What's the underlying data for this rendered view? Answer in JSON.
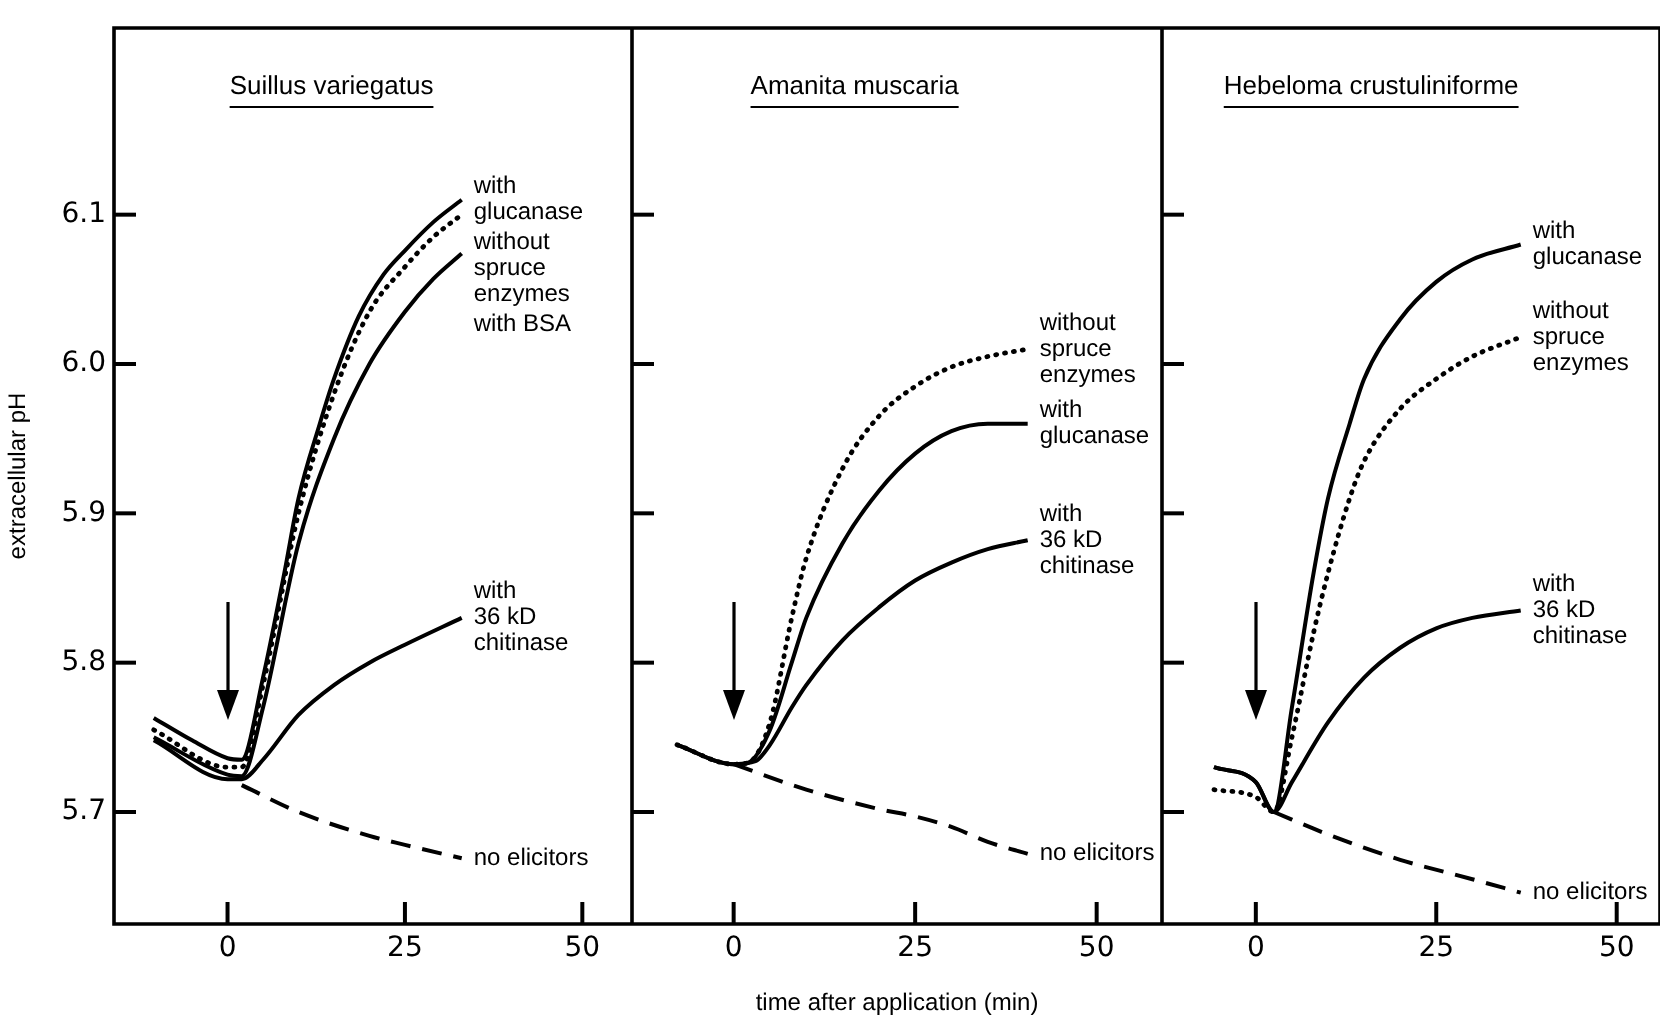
{
  "chart_data": [
    {
      "type": "line",
      "title": "Suillus variegatus",
      "ylabel": "extracellular pH",
      "xlim": [
        -16,
        57
      ],
      "xticks": [
        0,
        25,
        50
      ],
      "ylim": [
        5.625,
        6.225
      ],
      "yticks": [
        5.7,
        5.8,
        5.9,
        {
          "value": 6,
          "label": "6.0"
        },
        6.1
      ],
      "series": [
        {
          "name": "with\nglucanase",
          "color": "#000000",
          "line_style": "solid",
          "x": [
            -10.4,
            -5,
            0,
            2,
            5,
            8,
            10,
            13,
            15,
            18.5,
            22,
            25,
            29,
            33
          ],
          "values": [
            5.763,
            5.748,
            5.736,
            5.735,
            5.79,
            5.86,
            5.91,
            5.96,
            5.99,
            6.032,
            6.06,
            6.076,
            6.095,
            6.11
          ]
        },
        {
          "name": "without\nspruce\nenzymes",
          "color": "#000000",
          "line_style": "dotted",
          "x": [
            -10.4,
            0,
            2,
            5,
            10,
            15,
            20,
            25,
            29,
            33
          ],
          "values": [
            5.755,
            5.73,
            5.73,
            5.785,
            5.9,
            5.98,
            6.035,
            6.065,
            6.085,
            6.1
          ]
        },
        {
          "name": "with BSA",
          "color": "#000000",
          "line_style": "solid",
          "x": [
            -10.4,
            0,
            2,
            5,
            10,
            15,
            20,
            25,
            29,
            33
          ],
          "values": [
            5.75,
            5.725,
            5.724,
            5.77,
            5.88,
            5.95,
            6.0,
            6.035,
            6.057,
            6.074
          ]
        },
        {
          "name": "with\n36 kD\nchitinase",
          "color": "#000000",
          "line_style": "solid",
          "x": [
            -10.4,
            0,
            2,
            5,
            10,
            15,
            20,
            25,
            33
          ],
          "values": [
            5.748,
            5.722,
            5.722,
            5.735,
            5.765,
            5.785,
            5.8,
            5.812,
            5.83
          ]
        },
        {
          "name": "no elicitors",
          "color": "#000000",
          "line_style": "dashed",
          "x": [
            2,
            10,
            20,
            25,
            33
          ],
          "values": [
            5.718,
            5.7,
            5.684,
            5.678,
            5.669
          ]
        }
      ]
    },
    {
      "type": "line",
      "title": "Amanita muscaria",
      "xlabel": "time after application (min)",
      "xlim": [
        -14,
        59
      ],
      "xticks": [
        0,
        25,
        50
      ],
      "ylim": [
        5.625,
        6.225
      ],
      "yticks": [
        5.7,
        5.8,
        5.9,
        6.0,
        6.1
      ],
      "tick_labels": "x",
      "series": [
        {
          "name": "without\nspruce\nenzymes",
          "color": "#000000",
          "line_style": "dotted",
          "x": [
            -7.8,
            0,
            2,
            5,
            8,
            10,
            15,
            20,
            25,
            30,
            35,
            40.5
          ],
          "values": [
            5.745,
            5.732,
            5.733,
            5.76,
            5.83,
            5.87,
            5.93,
            5.965,
            5.985,
            5.998,
            6.005,
            6.01
          ]
        },
        {
          "name": "with\nglucanase",
          "color": "#000000",
          "line_style": "solid",
          "x": [
            -7.8,
            0,
            2,
            5,
            8,
            10,
            15,
            20,
            25,
            30,
            35,
            40.5
          ],
          "values": [
            5.745,
            5.732,
            5.733,
            5.755,
            5.8,
            5.83,
            5.88,
            5.915,
            5.94,
            5.955,
            5.96,
            5.96
          ]
        },
        {
          "name": "with\n36 kD\nchitinase",
          "color": "#000000",
          "line_style": "solid",
          "x": [
            -7.8,
            0,
            3,
            5,
            8,
            10,
            15,
            20,
            25,
            30,
            35,
            40.5
          ],
          "values": [
            5.745,
            5.732,
            5.734,
            5.745,
            5.77,
            5.785,
            5.815,
            5.837,
            5.855,
            5.867,
            5.876,
            5.882
          ]
        },
        {
          "name": "no elicitors",
          "color": "#000000",
          "line_style": "dashed",
          "x": [
            0,
            10,
            20,
            25,
            30,
            35,
            40.5
          ],
          "values": [
            5.732,
            5.715,
            5.702,
            5.697,
            5.69,
            5.68,
            5.672
          ]
        }
      ]
    },
    {
      "type": "line",
      "title": "Hebeloma crustuliniforme",
      "xlim": [
        -13,
        56
      ],
      "xticks": [
        0,
        25,
        50
      ],
      "ylim": [
        5.625,
        6.225
      ],
      "yticks": [
        5.7,
        5.8,
        5.9,
        6.0,
        6.1
      ],
      "tick_labels": "x",
      "series": [
        {
          "name": "with\nglucanase",
          "color": "#000000",
          "line_style": "solid",
          "x": [
            -5.8,
            0,
            2.5,
            5,
            8,
            10,
            13,
            15,
            20,
            25,
            30,
            36.7
          ],
          "values": [
            5.73,
            5.72,
            5.7,
            5.77,
            5.86,
            5.91,
            5.96,
            5.99,
            6.03,
            6.055,
            6.07,
            6.08
          ]
        },
        {
          "name": "without\nspruce\nenzymes",
          "color": "#000000",
          "line_style": "dotted",
          "x": [
            -5.8,
            0,
            2.5,
            5,
            8,
            10,
            13,
            15,
            20,
            25,
            30,
            36.7
          ],
          "values": [
            5.715,
            5.71,
            5.7,
            5.75,
            5.82,
            5.86,
            5.91,
            5.935,
            5.97,
            5.99,
            6.005,
            6.018
          ]
        },
        {
          "name": "with\n36 kD\nchitinase",
          "color": "#000000",
          "line_style": "solid",
          "x": [
            -5.8,
            0,
            2.5,
            5,
            10,
            15,
            20,
            25,
            30,
            36.7
          ],
          "values": [
            5.73,
            5.72,
            5.7,
            5.72,
            5.76,
            5.79,
            5.81,
            5.823,
            5.83,
            5.835
          ]
        },
        {
          "name": "no elicitors",
          "color": "#000000",
          "line_style": "dashed",
          "x": [
            2.5,
            10,
            20,
            30,
            36.7
          ],
          "values": [
            5.7,
            5.685,
            5.668,
            5.655,
            5.646
          ]
        }
      ]
    }
  ]
}
